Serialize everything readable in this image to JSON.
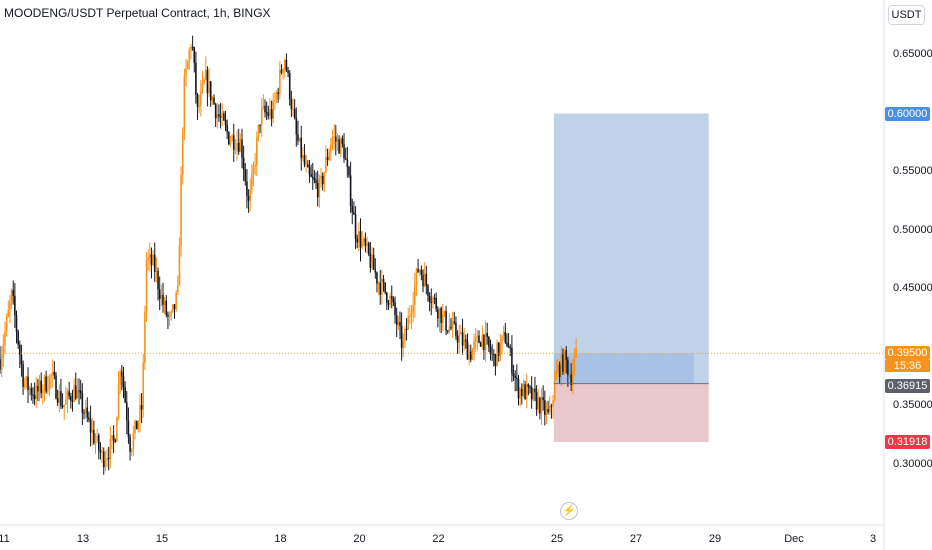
{
  "header": {
    "title": "MOODENG/USDT Perpetual Contract, 1h, BINGX",
    "currency": "USDT"
  },
  "colors": {
    "up": "#f7931a",
    "down": "#131722",
    "profit_zone": "#b8cde6",
    "loss_zone": "#e8c1c8",
    "take_profit_tag": "#4a90e2",
    "stop_loss_tag": "#f23645",
    "entry_tag": "#5d606b",
    "last_price_tag": "#f7931a"
  },
  "chart_data": {
    "type": "candlestick",
    "symbol": "MOODENG/USDT Perpetual Contract",
    "interval": "1h",
    "exchange": "BINGX",
    "y_ticks": [
      "0.65000",
      "0.55000",
      "0.50000",
      "0.45000",
      "0.35000",
      "0.30000"
    ],
    "x_ticks": [
      {
        "label": "11",
        "day": 11
      },
      {
        "label": "13",
        "day": 13
      },
      {
        "label": "15",
        "day": 15
      },
      {
        "label": "18",
        "day": 18
      },
      {
        "label": "20",
        "day": 20
      },
      {
        "label": "22",
        "day": 22
      },
      {
        "label": "25",
        "day": 25
      },
      {
        "label": "27",
        "day": 27
      },
      {
        "label": "29",
        "day": 29
      },
      {
        "label": "Dec",
        "day": 31
      },
      {
        "label": "3",
        "day": 33
      }
    ],
    "last_price": 0.395,
    "last_price_label": "0.39500",
    "countdown": "15:36",
    "position": {
      "direction": "long",
      "entry": 0.36915,
      "entry_label": "0.36915",
      "take_profit": 0.6,
      "take_profit_label": "0.60000",
      "stop_loss": 0.31918,
      "stop_loss_label": "0.31918",
      "start_day": 24.92,
      "end_day": 28.84
    },
    "price_path": [
      [
        10.9,
        0.39
      ],
      [
        11.2,
        0.445
      ],
      [
        11.5,
        0.37
      ],
      [
        11.8,
        0.36
      ],
      [
        12.2,
        0.375
      ],
      [
        12.5,
        0.35
      ],
      [
        12.8,
        0.365
      ],
      [
        13.2,
        0.33
      ],
      [
        13.5,
        0.305
      ],
      [
        13.8,
        0.32
      ],
      [
        13.95,
        0.39
      ],
      [
        14.2,
        0.315
      ],
      [
        14.5,
        0.35
      ],
      [
        14.6,
        0.475
      ],
      [
        14.8,
        0.47
      ],
      [
        15.0,
        0.44
      ],
      [
        15.2,
        0.42
      ],
      [
        15.4,
        0.445
      ],
      [
        15.55,
        0.62
      ],
      [
        15.75,
        0.665
      ],
      [
        15.9,
        0.6
      ],
      [
        16.1,
        0.63
      ],
      [
        16.4,
        0.6
      ],
      [
        16.7,
        0.58
      ],
      [
        17.0,
        0.575
      ],
      [
        17.2,
        0.52
      ],
      [
        17.5,
        0.6
      ],
      [
        17.8,
        0.6
      ],
      [
        18.1,
        0.65
      ],
      [
        18.4,
        0.58
      ],
      [
        18.7,
        0.545
      ],
      [
        19.0,
        0.535
      ],
      [
        19.3,
        0.58
      ],
      [
        19.6,
        0.57
      ],
      [
        19.9,
        0.5
      ],
      [
        20.2,
        0.48
      ],
      [
        20.5,
        0.455
      ],
      [
        20.8,
        0.44
      ],
      [
        21.1,
        0.4
      ],
      [
        21.5,
        0.47
      ],
      [
        21.8,
        0.445
      ],
      [
        22.2,
        0.42
      ],
      [
        22.5,
        0.41
      ],
      [
        22.8,
        0.395
      ],
      [
        23.1,
        0.41
      ],
      [
        23.4,
        0.39
      ],
      [
        23.7,
        0.41
      ],
      [
        24.0,
        0.365
      ],
      [
        24.3,
        0.36
      ],
      [
        24.6,
        0.35
      ],
      [
        24.8,
        0.34
      ],
      [
        25.0,
        0.38
      ],
      [
        25.2,
        0.39
      ],
      [
        25.35,
        0.375
      ],
      [
        25.5,
        0.395
      ]
    ]
  },
  "event_marker": {
    "icon": "lightning-icon",
    "glyph": "⚡"
  }
}
